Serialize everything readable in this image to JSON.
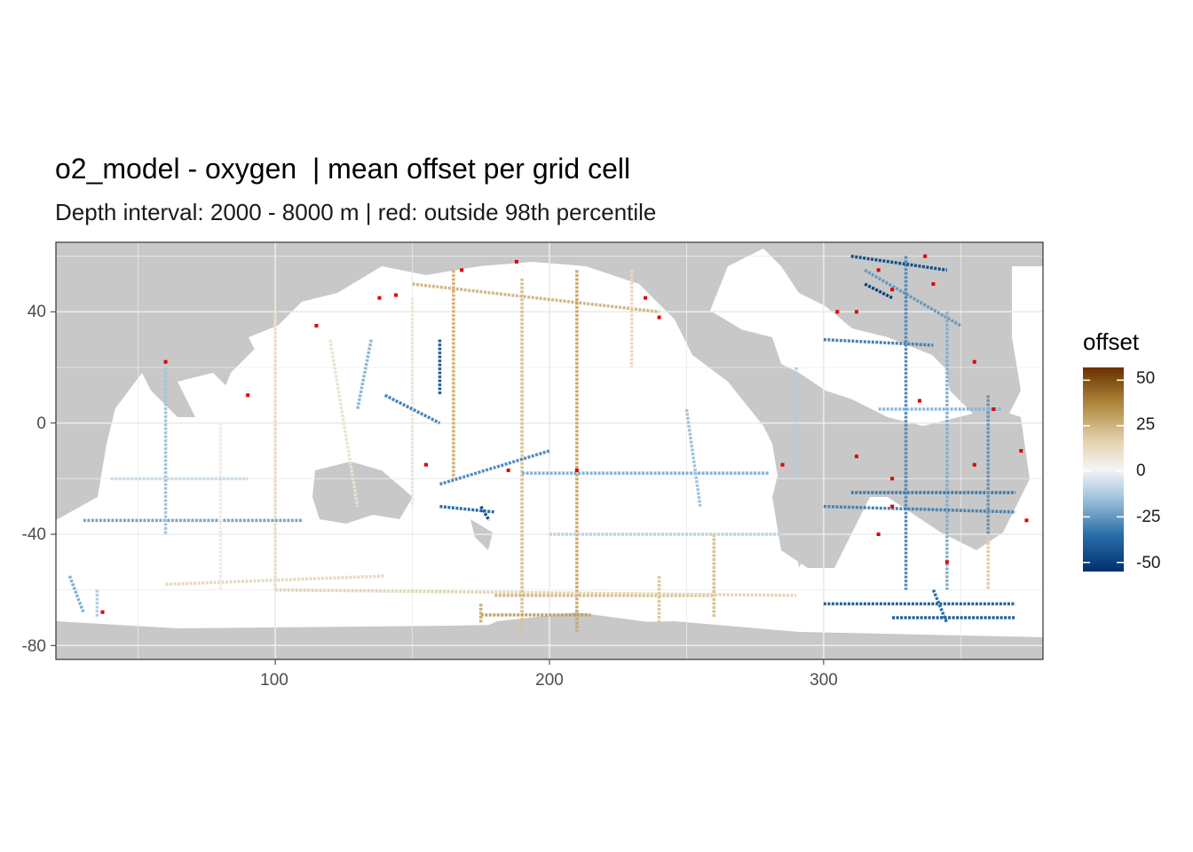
{
  "title": "o2_model - oxygen  | mean offset per grid cell",
  "subtitle": "Depth interval: 2000 - 8000 m | red: outside 98th percentile",
  "map": {
    "type": "gridded-map",
    "xlim": [
      20,
      380
    ],
    "ylim": [
      -85,
      65
    ],
    "x_ticks": [
      100,
      200,
      300
    ],
    "y_ticks": [
      40,
      0,
      -40,
      -80
    ],
    "grid": true,
    "colors": {
      "land": "#c8c8c8",
      "ocean": "#ffffff",
      "outlier": "#e00000",
      "grid": "#ebebeb"
    }
  },
  "legend": {
    "title": "offset",
    "ticks": [
      50,
      25,
      0,
      -25,
      -50
    ],
    "range": [
      -55,
      57
    ],
    "gradient": [
      "#003070",
      "#2a6ea8",
      "#9fc4dc",
      "#f5f5f5",
      "#e3d2ae",
      "#b0883c",
      "#6a3000"
    ]
  }
}
